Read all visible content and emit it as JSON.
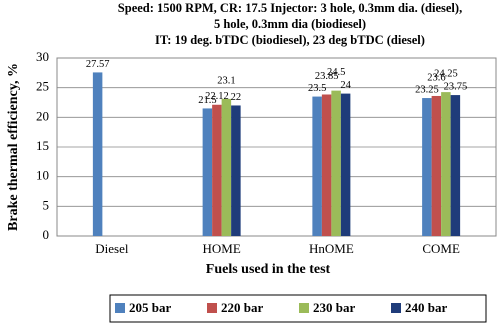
{
  "chart_data": {
    "type": "bar",
    "title": [
      "Speed: 1500 RPM, CR: 17.5  Injector: 3 hole, 0.3mm dia. (diesel),",
      "5 hole, 0.3mm dia (biodiesel)",
      "IT: 19 deg. bTDC (biodiesel), 23 deg bTDC (diesel)"
    ],
    "x_label": "Fuels used in the test",
    "y_label": "Brake thermal efficiency, %",
    "categories": [
      "Diesel",
      "HOME",
      "HnOME",
      "COME"
    ],
    "series": [
      {
        "name": "205 bar",
        "color": "#4f81bd",
        "values": [
          27.57,
          21.5,
          23.5,
          23.25
        ]
      },
      {
        "name": "220 bar",
        "color": "#c0504d",
        "values": [
          null,
          22.12,
          23.85,
          23.6
        ]
      },
      {
        "name": "230 bar",
        "color": "#9bbb59",
        "values": [
          null,
          23.1,
          24.5,
          24.25
        ]
      },
      {
        "name": "240 bar",
        "color": "#1f3c7a",
        "values": [
          null,
          22,
          24,
          23.75
        ]
      }
    ],
    "ylim": [
      0,
      30
    ],
    "yticks": [
      0,
      5,
      10,
      15,
      20,
      25,
      30
    ],
    "grid": true,
    "legend": "bottom"
  }
}
